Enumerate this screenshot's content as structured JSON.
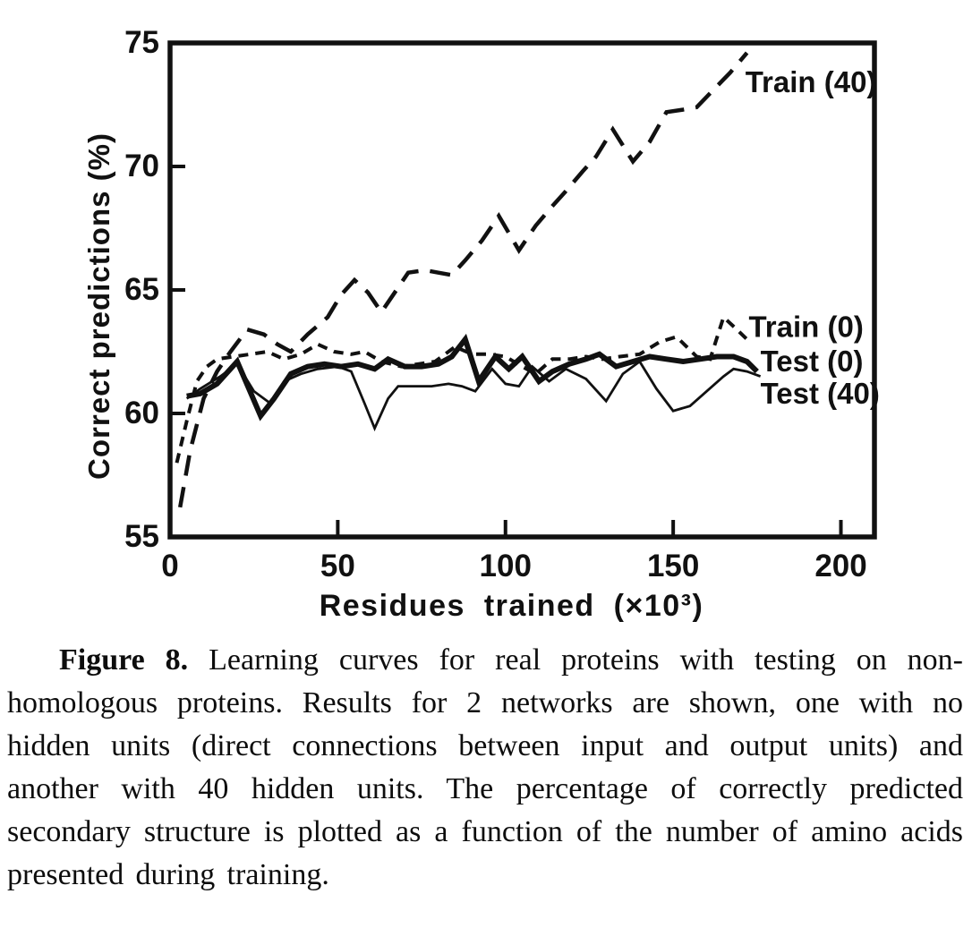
{
  "figure": {
    "caption_label": "Figure 8.",
    "caption_text": "Learning curves for real proteins with testing on non-homologous proteins. Results for 2 networks are shown, one with no hidden units (direct connections between input and output units) and another with 40 hidden units. The percentage of correctly predicted secondary structure is plotted as a function of the number of amino acids presented during training."
  },
  "chart_data": {
    "type": "line",
    "title": "",
    "xlabel": "Residues trained (×10³)",
    "ylabel": "Correct predictions (%)",
    "xlim": [
      0,
      210
    ],
    "ylim": [
      55,
      75
    ],
    "xticks": [
      0,
      50,
      100,
      150,
      200
    ],
    "yticks": [
      55,
      60,
      65,
      70,
      75
    ],
    "grid": false,
    "legend_position": "right-inline",
    "line_color": "#111111",
    "series": [
      {
        "name": "Train (40)",
        "line_style": "long-dash",
        "label_anchor": {
          "x": 171.5,
          "y": 73.4
        },
        "points": [
          [
            3,
            56.2
          ],
          [
            6,
            58.5
          ],
          [
            10,
            60.6
          ],
          [
            14,
            61.7
          ],
          [
            18,
            62.5
          ],
          [
            23,
            63.4
          ],
          [
            28,
            63.2
          ],
          [
            32,
            62.8
          ],
          [
            36,
            62.5
          ],
          [
            41,
            63.2
          ],
          [
            47,
            63.9
          ],
          [
            51,
            64.8
          ],
          [
            55,
            65.4
          ],
          [
            59,
            64.9
          ],
          [
            63,
            64.1
          ],
          [
            67,
            64.9
          ],
          [
            71,
            65.7
          ],
          [
            76,
            65.8
          ],
          [
            80,
            65.7
          ],
          [
            84,
            65.6
          ],
          [
            88,
            66.2
          ],
          [
            93,
            67.0
          ],
          [
            98,
            68.0
          ],
          [
            104,
            66.6
          ],
          [
            109,
            67.6
          ],
          [
            114,
            68.4
          ],
          [
            118,
            69.0
          ],
          [
            123,
            69.8
          ],
          [
            127,
            70.4
          ],
          [
            132,
            71.5
          ],
          [
            138,
            70.2
          ],
          [
            143,
            71.0
          ],
          [
            148,
            72.2
          ],
          [
            153,
            72.3
          ],
          [
            157,
            72.4
          ],
          [
            162,
            73.1
          ],
          [
            167,
            73.8
          ],
          [
            172,
            74.6
          ]
        ]
      },
      {
        "name": "Train (0)",
        "line_style": "short-dash",
        "label_anchor": {
          "x": 172.5,
          "y": 63.5
        },
        "points": [
          [
            2,
            58.0
          ],
          [
            5,
            59.7
          ],
          [
            8,
            61.3
          ],
          [
            11,
            61.9
          ],
          [
            14,
            62.2
          ],
          [
            19,
            62.3
          ],
          [
            24,
            62.4
          ],
          [
            29,
            62.5
          ],
          [
            34,
            62.2
          ],
          [
            39,
            62.4
          ],
          [
            44,
            62.8
          ],
          [
            49,
            62.5
          ],
          [
            54,
            62.4
          ],
          [
            58,
            62.5
          ],
          [
            63,
            62.1
          ],
          [
            69,
            61.9
          ],
          [
            74,
            62.0
          ],
          [
            79,
            62.1
          ],
          [
            85,
            62.7
          ],
          [
            90,
            62.4
          ],
          [
            95,
            62.4
          ],
          [
            100,
            62.3
          ],
          [
            105,
            61.9
          ],
          [
            109,
            61.6
          ],
          [
            114,
            62.2
          ],
          [
            119,
            62.2
          ],
          [
            124,
            62.3
          ],
          [
            129,
            62.2
          ],
          [
            134,
            62.3
          ],
          [
            140,
            62.4
          ],
          [
            146,
            62.9
          ],
          [
            151,
            63.1
          ],
          [
            157,
            62.3
          ],
          [
            161,
            62.2
          ],
          [
            165,
            63.9
          ],
          [
            169,
            63.4
          ],
          [
            172,
            63.0
          ]
        ]
      },
      {
        "name": "Test (0)",
        "line_style": "solid-thick",
        "label_anchor": {
          "x": 176,
          "y": 62.1
        },
        "points": [
          [
            5,
            60.7
          ],
          [
            9,
            60.8
          ],
          [
            14,
            61.2
          ],
          [
            20,
            62.1
          ],
          [
            27,
            59.9
          ],
          [
            31,
            60.6
          ],
          [
            36,
            61.6
          ],
          [
            41,
            61.9
          ],
          [
            46,
            62.0
          ],
          [
            51,
            61.9
          ],
          [
            56,
            62.0
          ],
          [
            61,
            61.8
          ],
          [
            65,
            62.2
          ],
          [
            70,
            61.9
          ],
          [
            75,
            61.9
          ],
          [
            80,
            62.0
          ],
          [
            84,
            62.3
          ],
          [
            88,
            63.0
          ],
          [
            92,
            61.3
          ],
          [
            97,
            62.3
          ],
          [
            101,
            61.8
          ],
          [
            105,
            62.3
          ],
          [
            110,
            61.3
          ],
          [
            114,
            61.7
          ],
          [
            119,
            62.0
          ],
          [
            124,
            62.2
          ],
          [
            128,
            62.4
          ],
          [
            133,
            61.9
          ],
          [
            138,
            62.1
          ],
          [
            143,
            62.3
          ],
          [
            148,
            62.2
          ],
          [
            153,
            62.1
          ],
          [
            158,
            62.2
          ],
          [
            163,
            62.3
          ],
          [
            168,
            62.3
          ],
          [
            172,
            62.1
          ],
          [
            175,
            61.7
          ]
        ]
      },
      {
        "name": "Test (40)",
        "line_style": "solid-thin",
        "label_anchor": {
          "x": 176,
          "y": 60.8
        },
        "points": [
          [
            5,
            60.6
          ],
          [
            9,
            61.0
          ],
          [
            15,
            61.5
          ],
          [
            20,
            62.0
          ],
          [
            25,
            60.9
          ],
          [
            30,
            60.4
          ],
          [
            34,
            61.3
          ],
          [
            39,
            61.6
          ],
          [
            44,
            61.8
          ],
          [
            50,
            61.9
          ],
          [
            54,
            61.7
          ],
          [
            58,
            60.4
          ],
          [
            61,
            59.4
          ],
          [
            65,
            60.6
          ],
          [
            68,
            61.1
          ],
          [
            73,
            61.1
          ],
          [
            78,
            61.1
          ],
          [
            83,
            61.2
          ],
          [
            87,
            61.1
          ],
          [
            91,
            60.9
          ],
          [
            96,
            61.8
          ],
          [
            100,
            61.2
          ],
          [
            104,
            61.1
          ],
          [
            108,
            61.9
          ],
          [
            113,
            61.3
          ],
          [
            118,
            61.8
          ],
          [
            124,
            61.4
          ],
          [
            130,
            60.5
          ],
          [
            135,
            61.6
          ],
          [
            140,
            62.1
          ],
          [
            145,
            61.0
          ],
          [
            150,
            60.1
          ],
          [
            155,
            60.3
          ],
          [
            160,
            60.9
          ],
          [
            165,
            61.5
          ],
          [
            168,
            61.8
          ],
          [
            172,
            61.7
          ],
          [
            176,
            61.5
          ]
        ]
      }
    ]
  }
}
